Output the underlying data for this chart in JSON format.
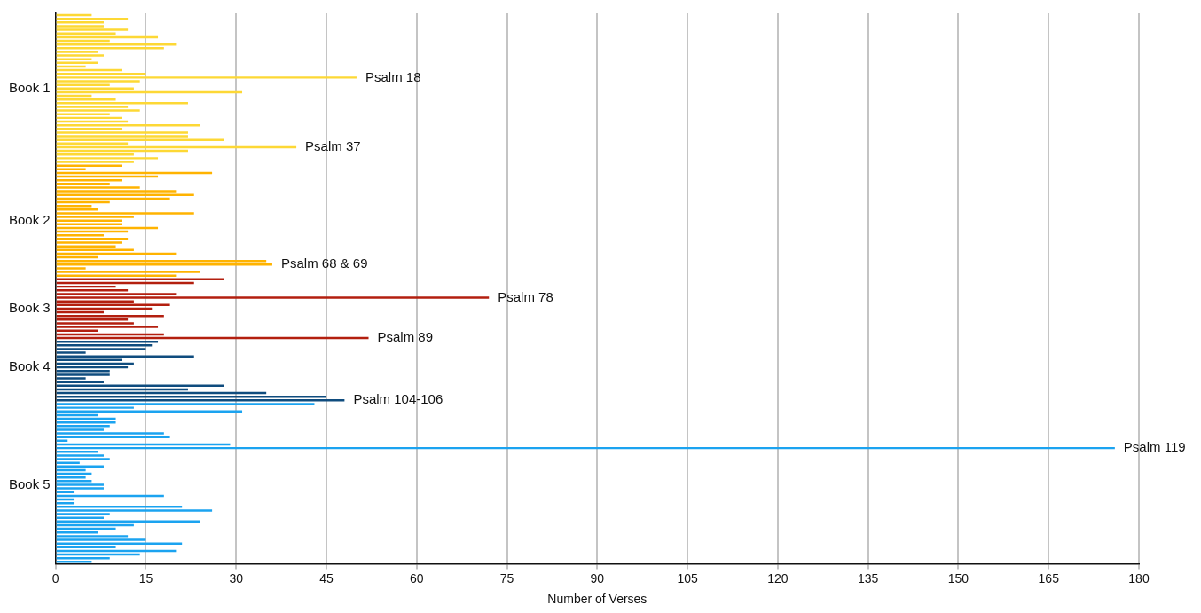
{
  "chart_data": {
    "type": "bar",
    "orientation": "horizontal",
    "xlabel": "Number of Verses",
    "categories": [
      null,
      null,
      null,
      null,
      null,
      null,
      null,
      null,
      null,
      null,
      null,
      null,
      null,
      null,
      null,
      null,
      null,
      null,
      null,
      null,
      "Book 1",
      null,
      null,
      null,
      null,
      null,
      null,
      null,
      null,
      null,
      null,
      null,
      null,
      null,
      null,
      null,
      null,
      null,
      null,
      null,
      null,
      null,
      null,
      null,
      null,
      null,
      null,
      null,
      null,
      null,
      null,
      null,
      null,
      null,
      null,
      null,
      "Book 2",
      null,
      null,
      null,
      null,
      null,
      null,
      null,
      null,
      null,
      null,
      null,
      null,
      null,
      null,
      null,
      null,
      null,
      null,
      null,
      null,
      null,
      null,
      null,
      "Book 3",
      null,
      null,
      null,
      null,
      null,
      null,
      null,
      null,
      null,
      null,
      null,
      null,
      null,
      null,
      null,
      "Book 4",
      null,
      null,
      null,
      null,
      null,
      null,
      null,
      null,
      null,
      null,
      null,
      null,
      null,
      null,
      null,
      null,
      null,
      null,
      null,
      null,
      null,
      null,
      null,
      null,
      null,
      null,
      null,
      null,
      null,
      null,
      null,
      "Book 5",
      null,
      null,
      null,
      null,
      null,
      null,
      null,
      null,
      null,
      null,
      null,
      null,
      null,
      null,
      null,
      null,
      null,
      null,
      null,
      null,
      null
    ],
    "values": [
      6,
      12,
      8,
      8,
      12,
      10,
      17,
      9,
      20,
      18,
      7,
      8,
      6,
      7,
      5,
      11,
      15,
      50,
      14,
      9,
      13,
      31,
      6,
      10,
      22,
      12,
      14,
      9,
      11,
      12,
      24,
      11,
      22,
      22,
      28,
      12,
      40,
      22,
      13,
      17,
      13,
      11,
      5,
      26,
      17,
      11,
      9,
      14,
      20,
      23,
      19,
      9,
      6,
      7,
      23,
      13,
      11,
      11,
      17,
      12,
      8,
      12,
      11,
      10,
      13,
      20,
      7,
      35,
      36,
      5,
      24,
      20,
      28,
      23,
      10,
      12,
      20,
      72,
      13,
      19,
      16,
      8,
      18,
      12,
      13,
      17,
      7,
      18,
      52,
      17,
      16,
      15,
      5,
      23,
      11,
      13,
      12,
      9,
      9,
      5,
      8,
      28,
      22,
      35,
      45,
      48,
      43,
      13,
      31,
      7,
      10,
      10,
      9,
      8,
      18,
      19,
      2,
      29,
      176,
      7,
      8,
      9,
      4,
      8,
      5,
      6,
      5,
      6,
      8,
      8,
      3,
      18,
      3,
      3,
      21,
      26,
      9,
      8,
      24,
      13,
      10,
      7,
      12,
      15,
      21,
      10,
      20,
      14,
      9,
      6
    ],
    "colors": [
      "#fdd835",
      "#fdd835",
      "#fdd835",
      "#fdd835",
      "#fdd835",
      "#fdd835",
      "#fdd835",
      "#fdd835",
      "#fdd835",
      "#fdd835",
      "#fdd835",
      "#fdd835",
      "#fdd835",
      "#fdd835",
      "#fdd835",
      "#fdd835",
      "#fdd835",
      "#fdd835",
      "#fdd835",
      "#fdd835",
      "#fdd835",
      "#fdd835",
      "#fdd835",
      "#fdd835",
      "#fdd835",
      "#fdd835",
      "#fdd835",
      "#fdd835",
      "#fdd835",
      "#fdd835",
      "#fdd835",
      "#fdd835",
      "#fdd835",
      "#fdd835",
      "#fdd835",
      "#fdd835",
      "#fdd835",
      "#fdd835",
      "#fdd835",
      "#fdd835",
      "#fdd835",
      "#ffb300",
      "#ffb300",
      "#ffb300",
      "#ffb300",
      "#ffb300",
      "#ffb300",
      "#ffb300",
      "#ffb300",
      "#ffb300",
      "#ffb300",
      "#ffb300",
      "#ffb300",
      "#ffb300",
      "#ffb300",
      "#ffb300",
      "#ffb300",
      "#ffb300",
      "#ffb300",
      "#ffb300",
      "#ffb300",
      "#ffb300",
      "#ffb300",
      "#ffb300",
      "#ffb300",
      "#ffb300",
      "#ffb300",
      "#ffb300",
      "#ffb300",
      "#ffb300",
      "#ffb300",
      "#ffb300",
      "#b31f0f",
      "#b31f0f",
      "#b31f0f",
      "#b31f0f",
      "#b31f0f",
      "#b31f0f",
      "#b31f0f",
      "#b31f0f",
      "#b31f0f",
      "#b31f0f",
      "#b31f0f",
      "#b31f0f",
      "#b31f0f",
      "#b31f0f",
      "#b31f0f",
      "#b31f0f",
      "#b31f0f",
      "#0f4c7e",
      "#0f4c7e",
      "#0f4c7e",
      "#0f4c7e",
      "#0f4c7e",
      "#0f4c7e",
      "#0f4c7e",
      "#0f4c7e",
      "#0f4c7e",
      "#0f4c7e",
      "#0f4c7e",
      "#0f4c7e",
      "#0f4c7e",
      "#0f4c7e",
      "#0f4c7e",
      "#0f4c7e",
      "#0f4c7e",
      "#1ba3f0",
      "#1ba3f0",
      "#1ba3f0",
      "#1ba3f0",
      "#1ba3f0",
      "#1ba3f0",
      "#1ba3f0",
      "#1ba3f0",
      "#1ba3f0",
      "#1ba3f0",
      "#1ba3f0",
      "#1ba3f0",
      "#1ba3f0",
      "#1ba3f0",
      "#1ba3f0",
      "#1ba3f0",
      "#1ba3f0",
      "#1ba3f0",
      "#1ba3f0",
      "#1ba3f0",
      "#1ba3f0",
      "#1ba3f0",
      "#1ba3f0",
      "#1ba3f0",
      "#1ba3f0",
      "#1ba3f0",
      "#1ba3f0",
      "#1ba3f0",
      "#1ba3f0",
      "#1ba3f0",
      "#1ba3f0",
      "#1ba3f0",
      "#1ba3f0",
      "#1ba3f0",
      "#1ba3f0",
      "#1ba3f0",
      "#1ba3f0",
      "#1ba3f0",
      "#1ba3f0",
      "#1ba3f0",
      "#1ba3f0",
      "#1ba3f0",
      "#1ba3f0",
      "#1ba3f0"
    ],
    "value_labels": [
      null,
      null,
      null,
      null,
      null,
      null,
      null,
      null,
      null,
      null,
      null,
      null,
      null,
      null,
      null,
      null,
      null,
      "Psalm 18",
      null,
      null,
      null,
      null,
      null,
      null,
      null,
      null,
      null,
      null,
      null,
      null,
      null,
      null,
      null,
      null,
      null,
      null,
      "Psalm 37",
      null,
      null,
      null,
      null,
      null,
      null,
      null,
      null,
      null,
      null,
      null,
      null,
      null,
      null,
      null,
      null,
      null,
      null,
      null,
      null,
      null,
      null,
      null,
      null,
      null,
      null,
      null,
      null,
      null,
      null,
      null,
      "Psalm 68 & 69",
      null,
      null,
      null,
      null,
      null,
      null,
      null,
      null,
      "Psalm 78",
      null,
      null,
      null,
      null,
      null,
      null,
      null,
      null,
      null,
      null,
      "Psalm 89",
      null,
      null,
      null,
      null,
      null,
      null,
      null,
      null,
      null,
      null,
      null,
      null,
      null,
      null,
      null,
      null,
      "Psalm 104-106",
      null,
      null,
      null,
      null,
      null,
      null,
      null,
      null,
      null,
      null,
      null,
      null,
      "Psalm 119",
      null,
      null,
      null,
      null,
      null,
      null,
      null,
      null,
      null,
      null,
      null,
      null,
      null,
      null,
      null,
      null,
      null,
      null,
      null,
      null,
      null,
      null,
      null,
      null,
      null,
      null,
      null,
      null,
      null,
      null,
      null
    ],
    "xlim": [
      0,
      180
    ],
    "xticks": [
      0,
      15,
      30,
      45,
      60,
      75,
      90,
      105,
      120,
      135,
      150,
      165,
      180
    ],
    "grid": "x"
  }
}
